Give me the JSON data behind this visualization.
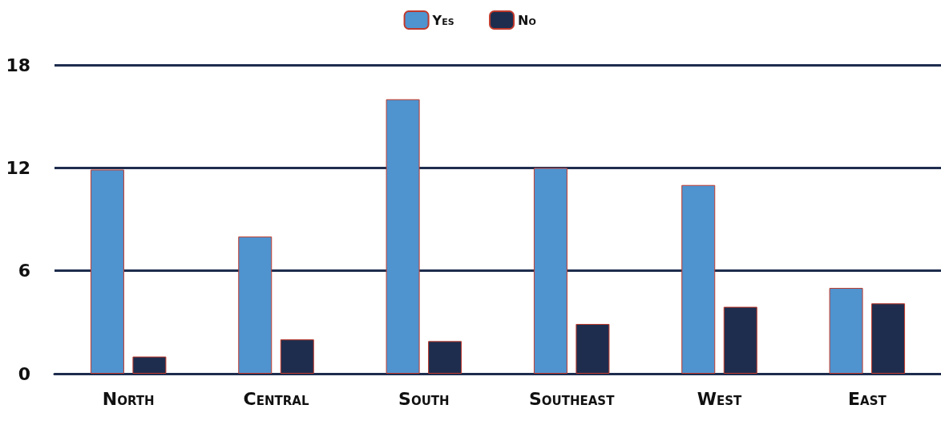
{
  "chart_data": {
    "type": "bar",
    "categories": [
      "North",
      "Central",
      "South",
      "Southeast",
      "West",
      "East"
    ],
    "series": [
      {
        "name": "Yes",
        "color": "#4f93cf",
        "values": [
          11.9,
          8,
          16,
          12,
          11,
          5
        ]
      },
      {
        "name": "No",
        "color": "#1e2d4e",
        "values": [
          1,
          2,
          1.9,
          2.9,
          3.9,
          4.1
        ]
      }
    ],
    "ylim": [
      0,
      18
    ],
    "yticks": [
      0,
      6,
      12,
      18
    ],
    "grid": "y",
    "legend": "top"
  }
}
